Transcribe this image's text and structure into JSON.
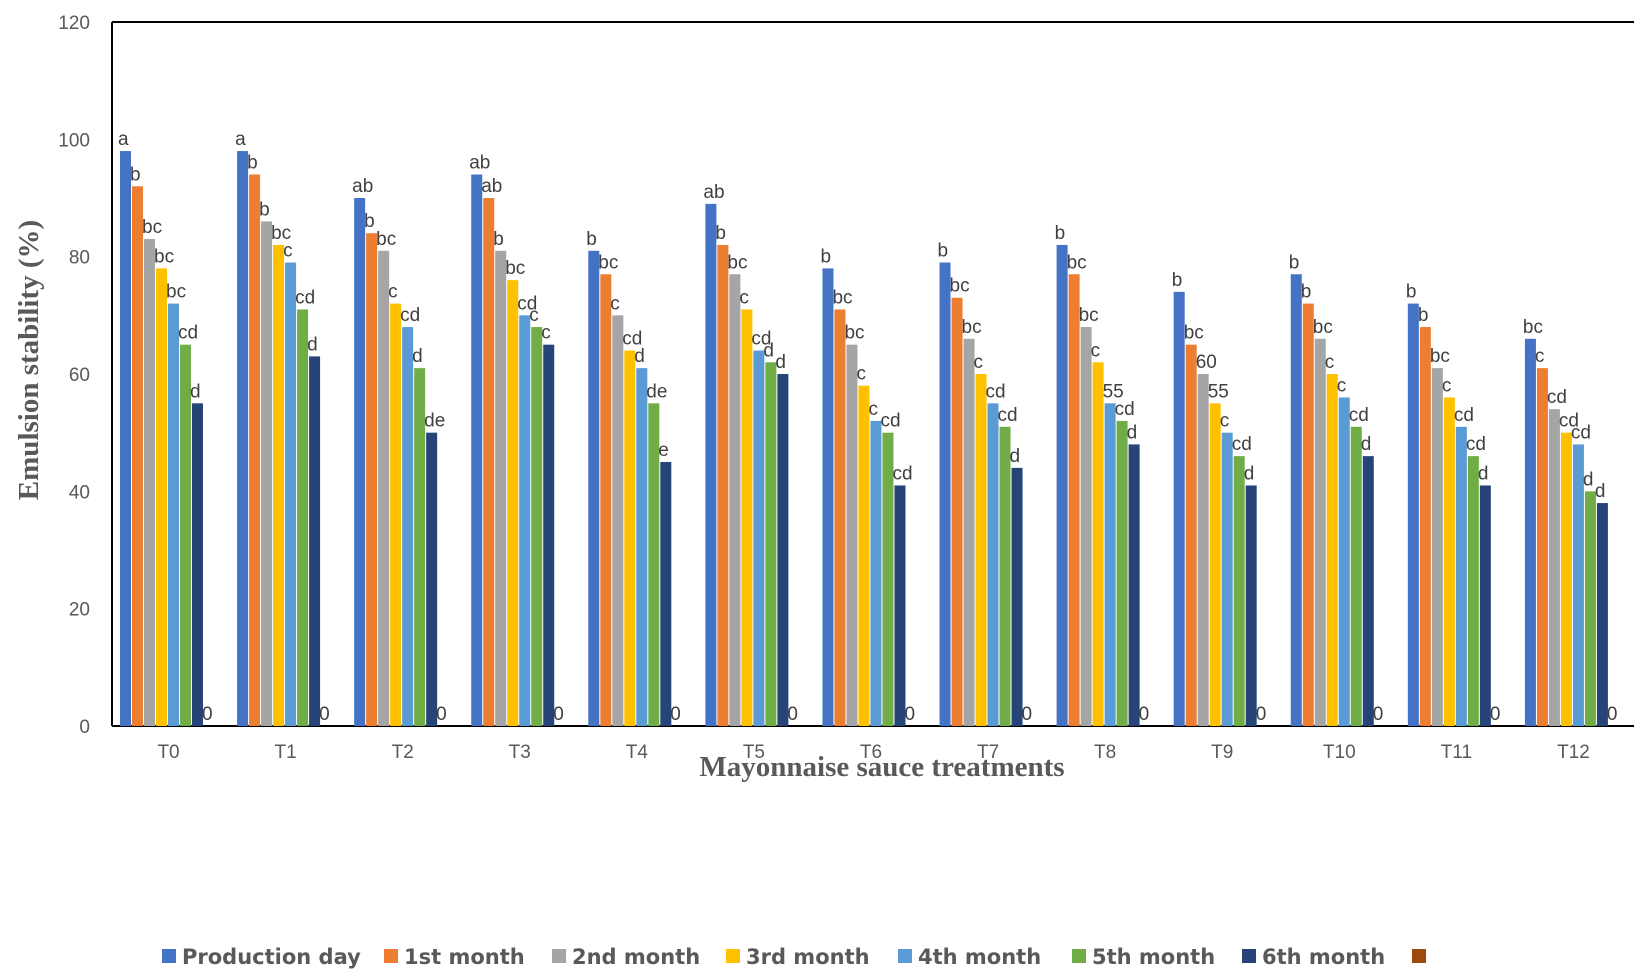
{
  "chart_data": {
    "type": "bar",
    "title": "",
    "xlabel": "Mayonnaise sauce treatments",
    "ylabel": "Emulsion stability (%)",
    "ylim": [
      0,
      120
    ],
    "yticks": [
      "0",
      "20",
      "40",
      "60",
      "80",
      "100",
      "120"
    ],
    "categories": [
      "T0",
      "T1",
      "T2",
      "T3",
      "T4",
      "T5",
      "T6",
      "T7",
      "T8",
      "T9",
      "T10",
      "T11",
      "T12"
    ],
    "legend_position": "bottom",
    "grid": false,
    "series": [
      {
        "name": "Production day",
        "color": "#4472C4",
        "values": [
          98,
          98,
          90,
          94,
          81,
          89,
          78,
          79,
          82,
          74,
          77,
          72,
          66
        ],
        "labels": [
          "a",
          "a",
          "ab",
          "ab",
          "b",
          "ab",
          "b",
          "b",
          "b",
          "b",
          "b",
          "b",
          "bc"
        ]
      },
      {
        "name": "1st month",
        "color": "#ED7D31",
        "values": [
          92,
          94,
          84,
          90,
          77,
          82,
          71,
          73,
          77,
          65,
          72,
          68,
          61
        ],
        "labels": [
          "b",
          "b",
          "b",
          "ab",
          "bc",
          "b",
          "bc",
          "bc",
          "bc",
          "bc",
          "b",
          "b",
          "c"
        ]
      },
      {
        "name": "2nd month",
        "color": "#A5A5A5",
        "values": [
          83,
          86,
          81,
          81,
          70,
          77,
          65,
          66,
          68,
          60,
          66,
          61,
          54
        ],
        "labels": [
          "bc",
          "b",
          "bc",
          "b",
          "c",
          "bc",
          "bc",
          "bc",
          "bc",
          "60",
          "bc",
          "bc",
          "cd"
        ]
      },
      {
        "name": "3rd month",
        "color": "#FFC000",
        "values": [
          78,
          82,
          72,
          76,
          64,
          71,
          58,
          60,
          62,
          55,
          60,
          56,
          50
        ],
        "labels": [
          "bc",
          "bc",
          "c",
          "bc",
          "cd",
          "c",
          "c",
          "c",
          "c",
          "55",
          "c",
          "c",
          "cd"
        ]
      },
      {
        "name": "4th month",
        "color": "#5B9BD5",
        "values": [
          72,
          79,
          68,
          70,
          61,
          64,
          52,
          55,
          55,
          50,
          56,
          51,
          48
        ],
        "labels": [
          "bc",
          "c",
          "cd",
          "cd",
          "d",
          "cd",
          "c",
          "cd",
          "55",
          "c",
          "c",
          "cd",
          "cd"
        ]
      },
      {
        "name": "5th month",
        "color": "#70AD47",
        "values": [
          65,
          71,
          61,
          68,
          55,
          62,
          50,
          51,
          52,
          46,
          51,
          46,
          40
        ],
        "labels": [
          "cd",
          "cd",
          "d",
          "c",
          "de",
          "d",
          "cd",
          "cd",
          "cd",
          "cd",
          "cd",
          "cd",
          "d"
        ]
      },
      {
        "name": "6th month",
        "color": "#264478",
        "values": [
          55,
          63,
          50,
          65,
          45,
          60,
          41,
          44,
          48,
          41,
          46,
          41,
          38
        ],
        "labels": [
          "d",
          "d",
          "de",
          "c",
          "e",
          "d",
          "cd",
          "d",
          "d",
          "d",
          "d",
          "d",
          "d"
        ]
      },
      {
        "name": "",
        "color": "#9E480E",
        "values": [
          0,
          0,
          0,
          0,
          0,
          0,
          0,
          0,
          0,
          0,
          0,
          0,
          0
        ],
        "labels": [
          "0",
          "0",
          "0",
          "0",
          "0",
          "0",
          "0",
          "0",
          "0",
          "0",
          "0",
          "0",
          "0"
        ]
      }
    ]
  }
}
